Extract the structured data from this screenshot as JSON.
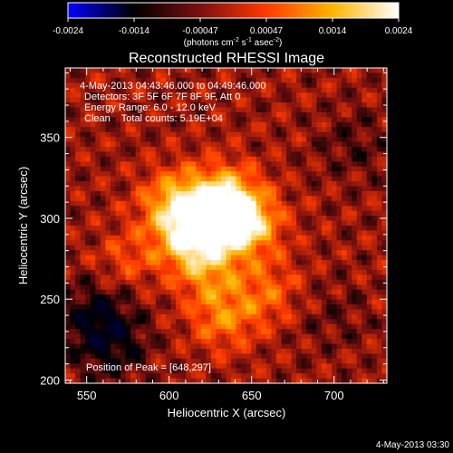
{
  "chart_data": {
    "type": "heatmap",
    "title": "Reconstructed RHESSI Image",
    "colorbar": {
      "ticks": [
        "-0.0024",
        "-0.0014",
        "-0.00047",
        "0.00047",
        "0.0014",
        "0.0024"
      ],
      "unit_label": "(photons cm",
      "unit_exp1": "-2",
      "unit_mid": " s",
      "unit_exp2": "-1",
      "unit_mid2": " asec",
      "unit_exp3": "-2",
      "unit_end": ")",
      "range": [
        -0.0024,
        0.0024
      ],
      "colors": [
        "#0000ff",
        "#000000",
        "#7a1010",
        "#ff3a00",
        "#ffb400",
        "#ffffff"
      ]
    },
    "xlabel": "Heliocentric X (arcsec)",
    "ylabel": "Heliocentric Y (arcsec)",
    "xlim": [
      537,
      732
    ],
    "ylim": [
      198,
      393
    ],
    "xticks": [
      550,
      600,
      650,
      700
    ],
    "yticks": [
      200,
      250,
      300,
      350
    ],
    "annotations": [
      "4-May-2013 04:43:46.000 to 04:49:46.000",
      "Detectors: 3F 5F 6F 7F 8F 9F, Att 0",
      "Energy Range: 6.0 - 12.0 keV",
      "Clean    Total counts: 5.19E+04"
    ],
    "peak_label": "Position of Peak = [648,297]",
    "peak": [
      648,
      297
    ],
    "bright_sources": [
      {
        "x": 603,
        "y": 309,
        "intensity": 0.85
      },
      {
        "x": 613,
        "y": 289,
        "intensity": 0.95
      },
      {
        "x": 628,
        "y": 299,
        "intensity": 0.9
      },
      {
        "x": 633,
        "y": 314,
        "intensity": 0.8
      },
      {
        "x": 648,
        "y": 297,
        "intensity": 1.0
      },
      {
        "x": 623,
        "y": 269,
        "intensity": 0.55
      },
      {
        "x": 633,
        "y": 239,
        "intensity": 0.6
      },
      {
        "x": 660,
        "y": 255,
        "intensity": 0.45
      },
      {
        "x": 575,
        "y": 275,
        "intensity": 0.35
      }
    ],
    "negative_regions": [
      {
        "x": 555,
        "y": 240,
        "strength": 0.7
      },
      {
        "x": 565,
        "y": 220,
        "strength": 0.6
      },
      {
        "x": 712,
        "y": 345,
        "strength": 0.35
      },
      {
        "x": 700,
        "y": 240,
        "strength": 0.25
      }
    ]
  },
  "footer": {
    "date": "4-May-2013 03:30"
  }
}
